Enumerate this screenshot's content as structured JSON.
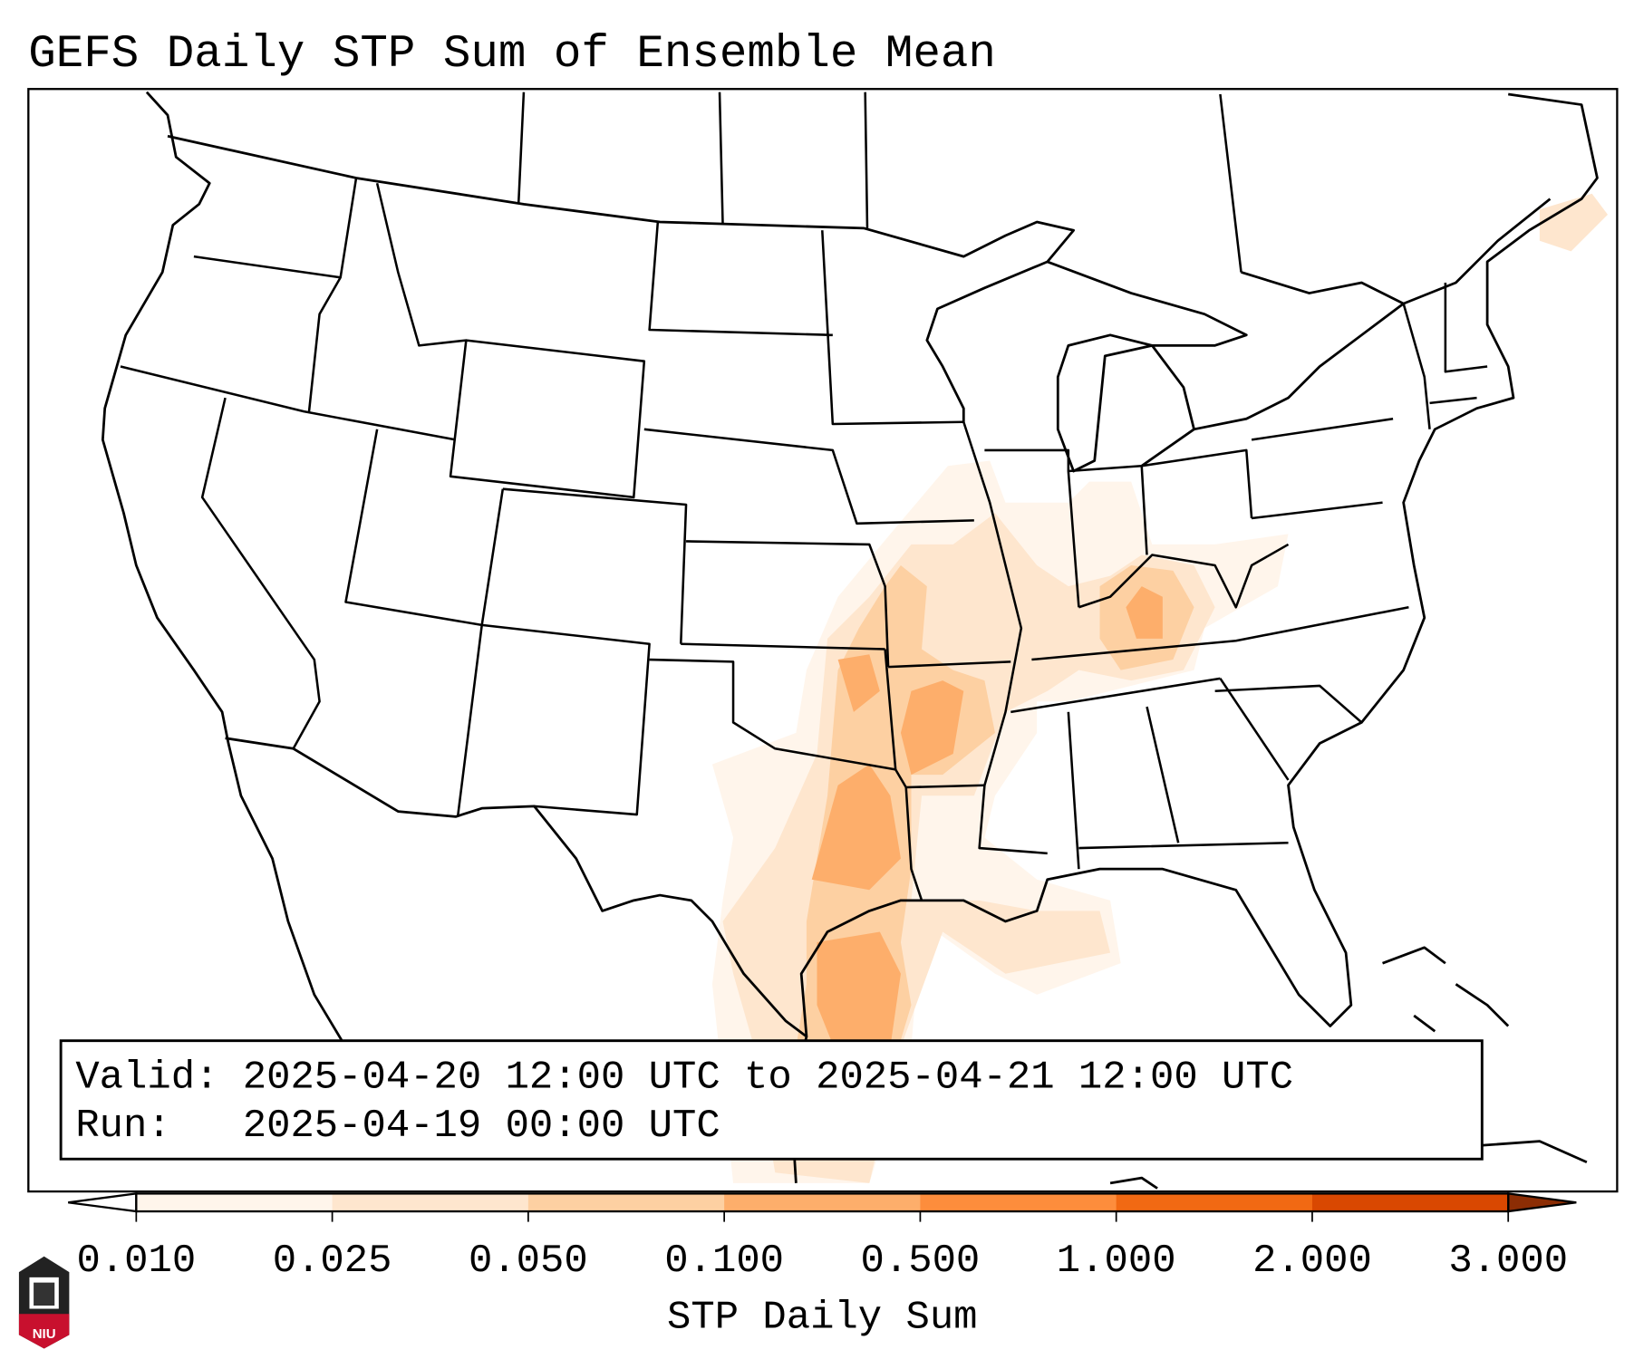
{
  "title": "GEFS Daily STP Sum of Ensemble Mean",
  "info_box": {
    "valid_line": "Valid: 2025-04-20 12:00 UTC to 2025-04-21 12:00 UTC",
    "run_line": "Run:   2025-04-19 00:00 UTC"
  },
  "colorbar": {
    "label": "STP Daily Sum",
    "ticks": [
      "0.010",
      "0.025",
      "0.050",
      "0.100",
      "0.500",
      "1.000",
      "2.000",
      "3.000"
    ],
    "under_color": "#ffffff",
    "colors": [
      "#fff5eb",
      "#fee6ce",
      "#fdd0a2",
      "#fdae6b",
      "#fd8d3c",
      "#f16913",
      "#d94801"
    ],
    "over_color": "#8c2d04"
  },
  "logo": {
    "text": "NIU"
  }
}
